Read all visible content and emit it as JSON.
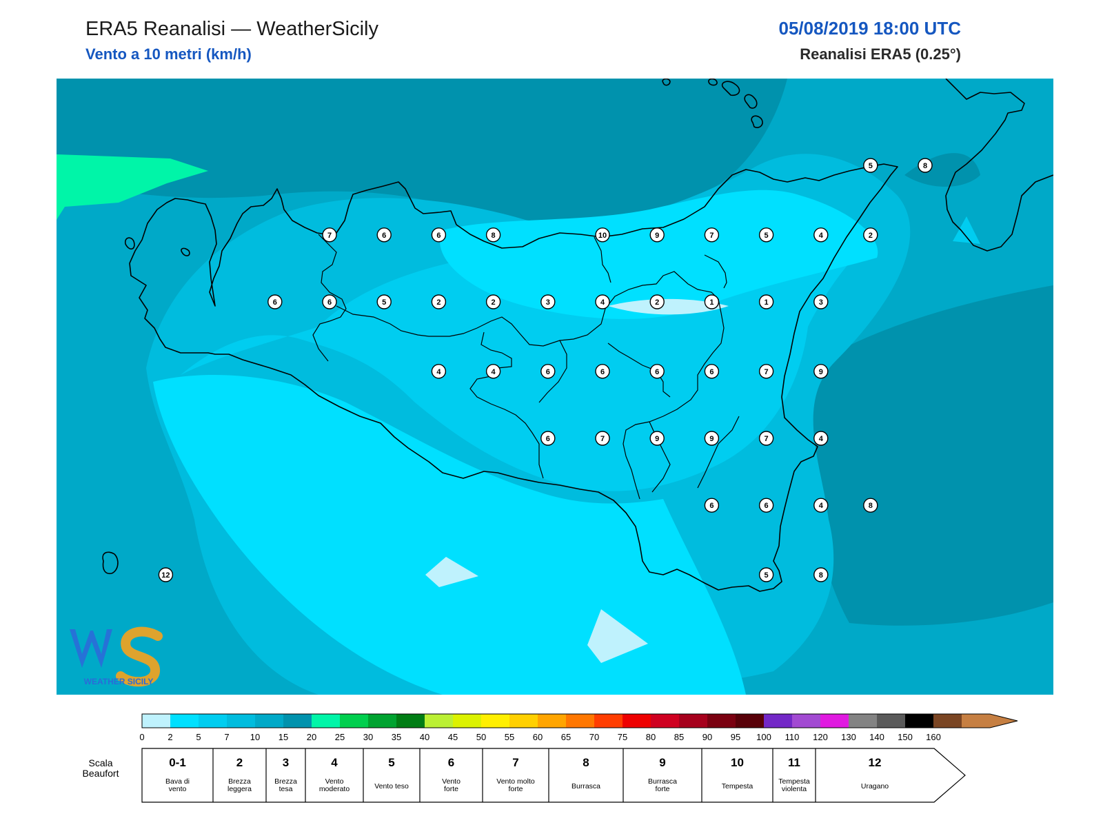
{
  "header": {
    "title": "ERA5 Reanalisi — WeatherSicily",
    "subtitle": "Vento a 10 metri (km/h)",
    "datetime": "05/08/2019 18:00 UTC",
    "source": "Reanalisi ERA5 (0.25°)"
  },
  "map": {
    "markers": [
      {
        "v": "5",
        "x": 15.28,
        "y": 38.45
      },
      {
        "v": "8",
        "x": 15.5,
        "y": 38.45
      },
      {
        "v": "7",
        "x": 13.1,
        "y": 38.17
      },
      {
        "v": "6",
        "x": 13.32,
        "y": 38.17
      },
      {
        "v": "6",
        "x": 13.54,
        "y": 38.17
      },
      {
        "v": "8",
        "x": 13.76,
        "y": 38.17
      },
      {
        "v": "10",
        "x": 14.2,
        "y": 38.17
      },
      {
        "v": "9",
        "x": 14.42,
        "y": 38.17
      },
      {
        "v": "7",
        "x": 14.64,
        "y": 38.17
      },
      {
        "v": "5",
        "x": 14.86,
        "y": 38.17
      },
      {
        "v": "4",
        "x": 15.08,
        "y": 38.17
      },
      {
        "v": "2",
        "x": 15.28,
        "y": 38.17
      },
      {
        "v": "6",
        "x": 12.88,
        "y": 37.9
      },
      {
        "v": "6",
        "x": 13.1,
        "y": 37.9
      },
      {
        "v": "5",
        "x": 13.32,
        "y": 37.9
      },
      {
        "v": "2",
        "x": 13.54,
        "y": 37.9
      },
      {
        "v": "2",
        "x": 13.76,
        "y": 37.9
      },
      {
        "v": "3",
        "x": 13.98,
        "y": 37.9
      },
      {
        "v": "4",
        "x": 14.2,
        "y": 37.9
      },
      {
        "v": "2",
        "x": 14.42,
        "y": 37.9
      },
      {
        "v": "1",
        "x": 14.64,
        "y": 37.9
      },
      {
        "v": "1",
        "x": 14.86,
        "y": 37.9
      },
      {
        "v": "3",
        "x": 15.08,
        "y": 37.9
      },
      {
        "v": "4",
        "x": 13.54,
        "y": 37.62
      },
      {
        "v": "4",
        "x": 13.76,
        "y": 37.62
      },
      {
        "v": "6",
        "x": 13.98,
        "y": 37.62
      },
      {
        "v": "6",
        "x": 14.2,
        "y": 37.62
      },
      {
        "v": "6",
        "x": 14.42,
        "y": 37.62
      },
      {
        "v": "6",
        "x": 14.64,
        "y": 37.62
      },
      {
        "v": "7",
        "x": 14.86,
        "y": 37.62
      },
      {
        "v": "9",
        "x": 15.08,
        "y": 37.62
      },
      {
        "v": "6",
        "x": 13.98,
        "y": 37.35
      },
      {
        "v": "7",
        "x": 14.2,
        "y": 37.35
      },
      {
        "v": "9",
        "x": 14.42,
        "y": 37.35
      },
      {
        "v": "9",
        "x": 14.64,
        "y": 37.35
      },
      {
        "v": "7",
        "x": 14.86,
        "y": 37.35
      },
      {
        "v": "4",
        "x": 15.08,
        "y": 37.35
      },
      {
        "v": "6",
        "x": 14.64,
        "y": 37.08
      },
      {
        "v": "6",
        "x": 14.86,
        "y": 37.08
      },
      {
        "v": "4",
        "x": 15.08,
        "y": 37.08
      },
      {
        "v": "8",
        "x": 15.28,
        "y": 37.08
      },
      {
        "v": "5",
        "x": 14.86,
        "y": 36.8
      },
      {
        "v": "8",
        "x": 15.08,
        "y": 36.8
      },
      {
        "v": "12",
        "x": 12.44,
        "y": 36.8
      }
    ]
  },
  "colorbar": {
    "ticks": [
      "0",
      "2",
      "5",
      "7",
      "10",
      "15",
      "20",
      "25",
      "30",
      "35",
      "40",
      "45",
      "50",
      "55",
      "60",
      "65",
      "70",
      "75",
      "80",
      "85",
      "90",
      "95",
      "100",
      "110",
      "120",
      "130",
      "140",
      "150",
      "160"
    ],
    "colors": [
      "#bff2fd",
      "#00e0ff",
      "#00cdf0",
      "#00bcde",
      "#00a9c8",
      "#0092ad",
      "#00f5a8",
      "#00cf4e",
      "#00a330",
      "#007d14",
      "#bbf034",
      "#dcf200",
      "#ffef00",
      "#ffd000",
      "#ffa500",
      "#ff7700",
      "#ff3d00",
      "#ee0000",
      "#cf0020",
      "#a6001c",
      "#7a0010",
      "#580008",
      "#7328c7",
      "#a24ad2",
      "#e01ae0",
      "#838383",
      "#5a5a5a",
      "#000000",
      "#7a4523",
      "#c67f42"
    ]
  },
  "beaufort": {
    "label": "Scala Beaufort",
    "classes": [
      {
        "n": "0-1",
        "desc": "Bava di vento"
      },
      {
        "n": "2",
        "desc": "Brezza leggera"
      },
      {
        "n": "3",
        "desc": "Brezza tesa"
      },
      {
        "n": "4",
        "desc": "Vento moderato"
      },
      {
        "n": "5",
        "desc": "Vento teso"
      },
      {
        "n": "6",
        "desc": "Vento forte"
      },
      {
        "n": "7",
        "desc": "Vento molto forte"
      },
      {
        "n": "8",
        "desc": "Burrasca"
      },
      {
        "n": "9",
        "desc": "Burrasca forte"
      },
      {
        "n": "10",
        "desc": "Tempesta"
      },
      {
        "n": "11",
        "desc": "Tempesta violenta"
      },
      {
        "n": "12",
        "desc": "Uragano"
      }
    ]
  },
  "logo": {
    "text": "WS",
    "caption": "WEATHER SICILY"
  }
}
